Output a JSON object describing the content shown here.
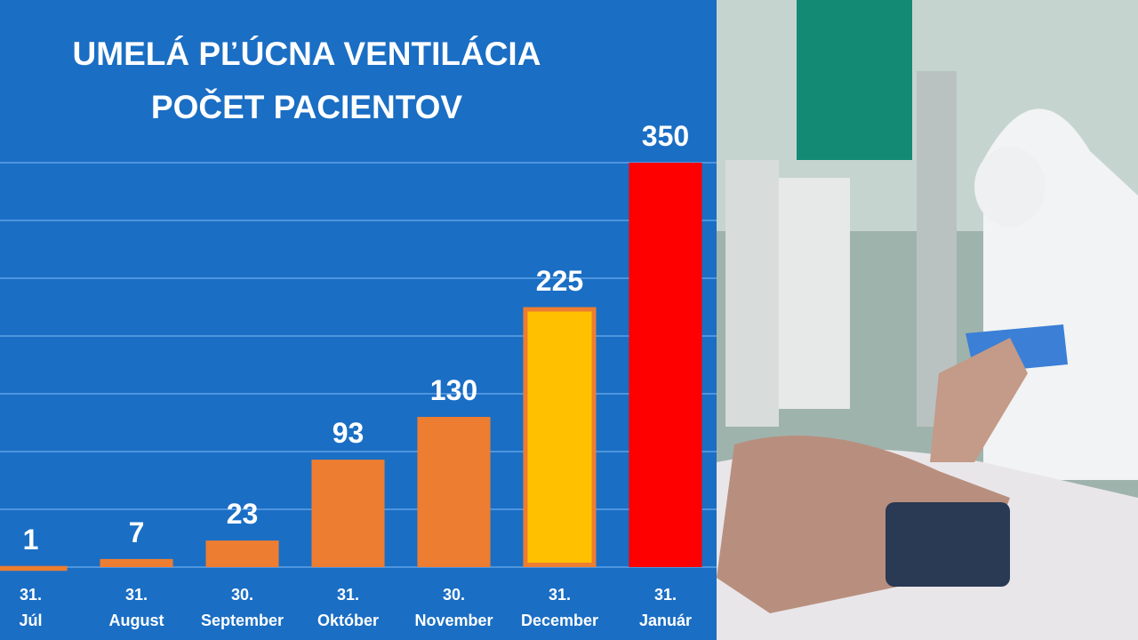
{
  "chart_data": {
    "type": "bar",
    "title": "UMELÁ PĽÚCNA VENTILÁCIA",
    "subtitle": "POČET PACIENTOV",
    "categories": [
      "31.\nJúl",
      "31.\nAugust",
      "30.\nSeptember",
      "31.\nOktóber",
      "30.\nNovember",
      "31.\nDecember",
      "31.\nJanuár"
    ],
    "values": [
      1,
      7,
      23,
      93,
      130,
      225,
      350
    ],
    "colors": [
      "#ed7d31",
      "#ed7d31",
      "#ed7d31",
      "#ed7d31",
      "#ed7d31",
      "#ffc000",
      "#ff0000"
    ],
    "edgecolors": [
      "#ed7d31",
      "#ed7d31",
      "#ed7d31",
      "#ed7d31",
      "#ed7d31",
      "#ed7d31",
      "#ff0000"
    ],
    "ylim": [
      0,
      350
    ],
    "yticks": [
      0,
      50,
      100,
      150,
      200,
      250,
      300,
      350
    ],
    "grid": true
  }
}
